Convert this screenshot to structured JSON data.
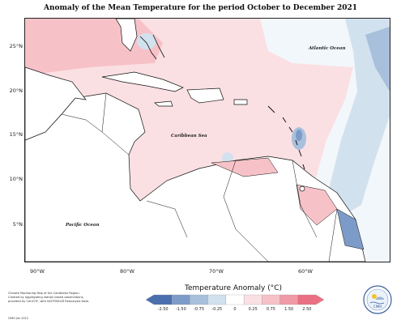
{
  "title": "Anomaly of the Mean Temperature for the period October to December 2021",
  "map": {
    "latitude_labels": [
      "25°N",
      "20°N",
      "15°N",
      "10°N",
      "5°N"
    ],
    "longitude_labels": [
      "90°W",
      "80°W",
      "70°W",
      "60°W"
    ],
    "region_labels": {
      "atlantic": "Atlantic Ocean",
      "caribbean": "Caribbean Sea",
      "pacific": "Pacific Ocean"
    }
  },
  "legend": {
    "title": "Temperature Anomaly (°C)",
    "ticks": [
      "-2.50",
      "-1.50",
      "-0.75",
      "-0.25",
      "0",
      "0.25",
      "0.75",
      "1.50",
      "2.50"
    ],
    "colors": [
      "#4a6fae",
      "#7d9bc8",
      "#a9c0dc",
      "#d2e1ee",
      "#ffffff",
      "#fbe0e3",
      "#f6c2c8",
      "#f09aa5",
      "#ea6f80"
    ]
  },
  "credits": {
    "line1": "Climate Monitoring Map of the Caribbean Region.",
    "line2": "Created by aggregating station based observations,",
    "line3": "provided by CariCOF, with NCEP/NCAR Reanalysis Data.",
    "copyright": "CIMH Jan 2022"
  },
  "logo": {
    "text": "CIMH"
  }
}
